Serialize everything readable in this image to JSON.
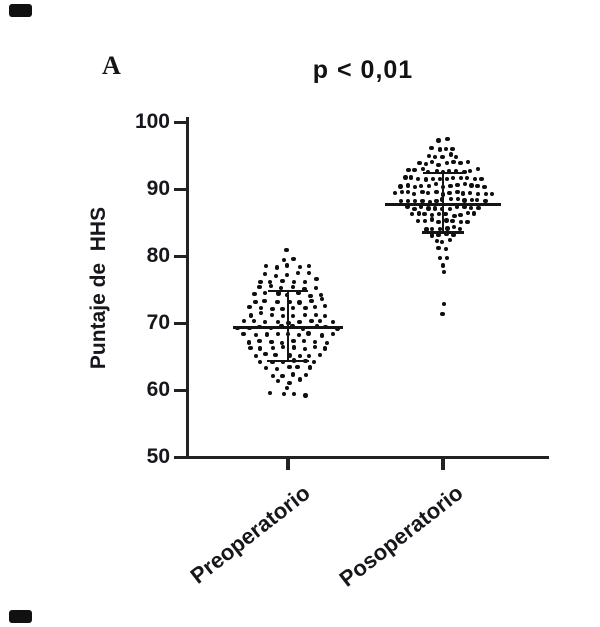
{
  "figure": {
    "panel_label": "A",
    "title": "p < 0,01",
    "y_axis_label": "Puntaje de  HHS",
    "ink_color": "#1a1a1a",
    "background_color": "#ffffff"
  },
  "chart_data": {
    "type": "scatter",
    "subtype": "beeswarm-dot-plot",
    "title": "p < 0,01",
    "xlabel": "",
    "ylabel": "Puntaje de HHS",
    "ylim": [
      50,
      100
    ],
    "yticks": [
      100,
      90,
      80,
      70,
      60,
      50
    ],
    "categories": [
      "Preoperatorio",
      "Posoperatorio"
    ],
    "grid": false,
    "legend": false,
    "error_bar_style": "mean ± SD",
    "series": [
      {
        "name": "Preoperatorio",
        "stats": {
          "mean": 69.3,
          "sd_upper": 74.8,
          "sd_lower": 64.3
        },
        "points_rle": [
          [
            80.7,
            1
          ],
          [
            79.5,
            2
          ],
          [
            78.4,
            5
          ],
          [
            77.3,
            5
          ],
          [
            76.3,
            6
          ],
          [
            75.3,
            6
          ],
          [
            74.3,
            7
          ],
          [
            73.3,
            7
          ],
          [
            72.3,
            8
          ],
          [
            71.3,
            8
          ],
          [
            70.3,
            9
          ],
          [
            69.3,
            10
          ],
          [
            68.3,
            9
          ],
          [
            67.3,
            8
          ],
          [
            66.3,
            8
          ],
          [
            65.3,
            7
          ],
          [
            64.3,
            6
          ],
          [
            63.3,
            5
          ],
          [
            62.3,
            4
          ],
          [
            61.3,
            3
          ],
          [
            60.4,
            1
          ],
          [
            59.3,
            4
          ]
        ]
      },
      {
        "name": "Posoperatorio",
        "stats": {
          "mean": 87.7,
          "sd_upper": 92.4,
          "sd_lower": 83.5
        },
        "points_rle": [
          [
            97.2,
            2
          ],
          [
            96.0,
            4
          ],
          [
            94.9,
            5
          ],
          [
            93.8,
            8
          ],
          [
            92.7,
            11
          ],
          [
            91.6,
            12
          ],
          [
            90.5,
            13
          ],
          [
            89.4,
            15
          ],
          [
            88.3,
            13
          ],
          [
            87.2,
            11
          ],
          [
            86.2,
            10
          ],
          [
            85.2,
            8
          ],
          [
            84.2,
            6
          ],
          [
            83.2,
            4
          ],
          [
            82.1,
            3
          ],
          [
            81.1,
            2
          ],
          [
            79.9,
            2
          ],
          [
            78.8,
            1
          ],
          [
            77.6,
            1
          ],
          [
            73.0,
            1
          ],
          [
            71.6,
            1
          ]
        ]
      }
    ]
  }
}
